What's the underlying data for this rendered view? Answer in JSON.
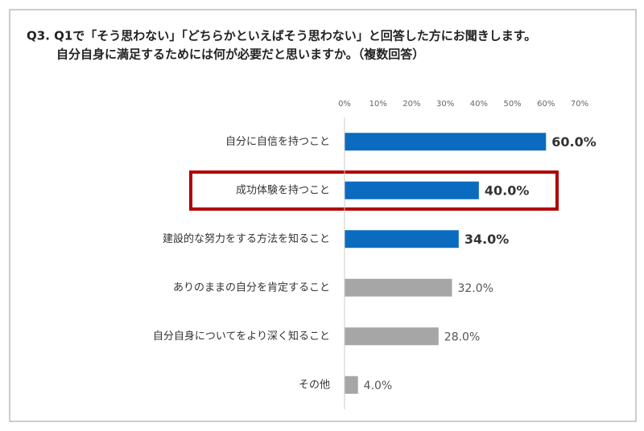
{
  "chart_data": {
    "type": "bar",
    "orientation": "horizontal",
    "title": [
      "Q3. Q1で「そう思わない」「どちらかといえばそう思わない」と回答した方にお聞きします。",
      "自分自身に満足するためには何が必要だと思いますか。（複数回答）"
    ],
    "categories": [
      "自分に自信を持つこと",
      "成功体験を持つこと",
      "建設的な努力をする方法を知ること",
      "ありのままの自分を肯定すること",
      "自分自身についてをより深く知ること",
      "その他"
    ],
    "values": [
      60,
      40,
      34,
      32,
      28,
      4
    ],
    "value_labels": [
      "60.0%",
      "40.0%",
      "34.0%",
      "32.0%",
      "28.0%",
      "4.0%"
    ],
    "colors": [
      "#0b6cbf",
      "#0b6cbf",
      "#0b6cbf",
      "#a6a6a6",
      "#a6a6a6",
      "#a6a6a6"
    ],
    "xlim": [
      0,
      70
    ],
    "xticks": [
      {
        "value": 0,
        "label": "0%"
      },
      {
        "value": 10,
        "label": "10%"
      },
      {
        "value": 20,
        "label": "20%"
      },
      {
        "value": 30,
        "label": "30%"
      },
      {
        "value": 40,
        "label": "40%"
      },
      {
        "value": 50,
        "label": "50%"
      },
      {
        "value": 60,
        "label": "60%"
      },
      {
        "value": 70,
        "label": "70%"
      }
    ],
    "grid": false
  }
}
